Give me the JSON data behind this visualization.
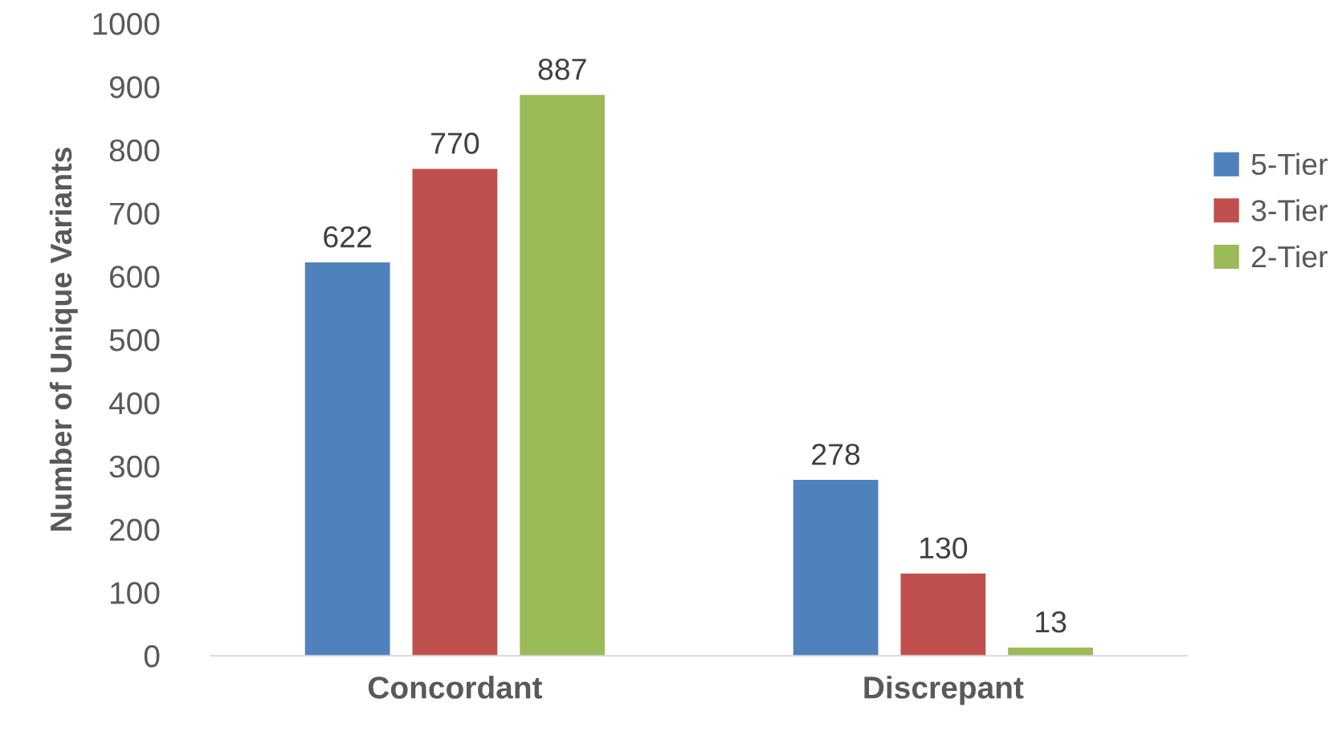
{
  "chart_data": {
    "type": "bar",
    "ylabel": "Number of Unique Variants",
    "categories": [
      "Concordant",
      "Discrepant"
    ],
    "series": [
      {
        "name": "5-Tier",
        "color": "#4f81bd",
        "values": [
          622,
          278
        ]
      },
      {
        "name": "3-Tier",
        "color": "#c0504d",
        "values": [
          770,
          130
        ]
      },
      {
        "name": "2-Tier",
        "color": "#9bbb59",
        "values": [
          887,
          13
        ]
      }
    ],
    "ylim": [
      0,
      1000
    ],
    "yticks": [
      0,
      100,
      200,
      300,
      400,
      500,
      600,
      700,
      800,
      900,
      1000
    ],
    "grid": false,
    "legend": "right",
    "data_labels": true
  }
}
